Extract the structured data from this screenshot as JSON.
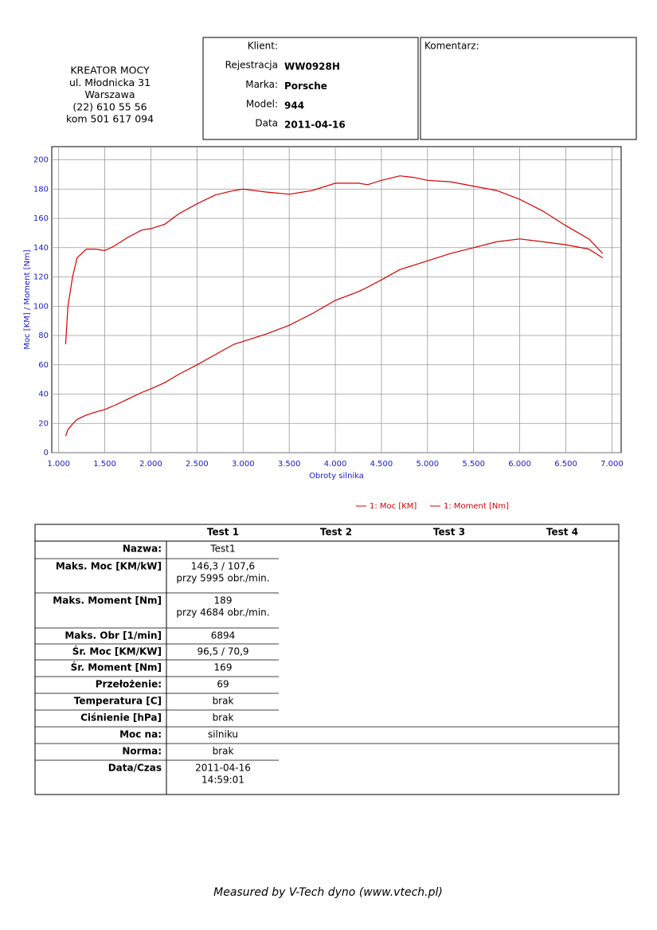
{
  "header": {
    "company": [
      "KREATOR MOCY",
      "ul. Młodnicka 31",
      "Warszawa",
      "(22) 610 55 56",
      "kom 501 617 094"
    ],
    "client": [
      {
        "label": "Klient:"
      },
      {
        "label": "Rejestracja",
        "value": "WW0928H"
      },
      {
        "label": "Marka:",
        "value": "Porsche"
      },
      {
        "label": "Model:",
        "value": "944"
      },
      {
        "label": "Data",
        "value": "2011-04-16"
      }
    ],
    "comment": "Komentarz:"
  },
  "chart_data": {
    "type": "line",
    "xlabel": "Obroty silnika",
    "ylabel": "Moc [KM] / Moment [Nm]",
    "x": [
      1075,
      1100,
      1150,
      1200,
      1300,
      1400,
      1500,
      1600,
      1750,
      1900,
      2000,
      2150,
      2300,
      2500,
      2700,
      2900,
      3000,
      3250,
      3500,
      3750,
      4000,
      4250,
      4350,
      4500,
      4700,
      4850,
      5000,
      5250,
      5500,
      5750,
      6000,
      6250,
      6500,
      6750,
      6900
    ],
    "series": [
      {
        "name": "1: Moc [KM]",
        "color": "#d40000",
        "values": [
          11.3,
          15.7,
          19.6,
          22.7,
          25.7,
          27.7,
          29.5,
          32.1,
          36.6,
          41.1,
          43.6,
          47.8,
          53.4,
          60,
          67,
          74,
          76,
          81,
          87,
          95,
          104,
          110,
          113,
          118,
          125,
          128,
          131,
          136,
          140,
          144,
          146,
          144,
          142,
          139,
          133
        ]
      },
      {
        "name": "1: Moment [Nm]",
        "color": "#d40000",
        "values": [
          74,
          100,
          120,
          133,
          139,
          139,
          138,
          141,
          147,
          152,
          153,
          156,
          163,
          170,
          176,
          179,
          180,
          178,
          176.5,
          179,
          184,
          184,
          183,
          186,
          189,
          188,
          186,
          185,
          182,
          179,
          173,
          165,
          155,
          146,
          136
        ]
      }
    ],
    "xlim": [
      925,
      7100
    ],
    "ylim": [
      0,
      209
    ],
    "xticks": [
      {
        "value": 1000,
        "label": "1.000"
      },
      {
        "value": 1500,
        "label": "1.500"
      },
      {
        "value": 2000,
        "label": "2.000"
      },
      {
        "value": 2500,
        "label": "2.500"
      },
      {
        "value": 3000,
        "label": "3.000"
      },
      {
        "value": 3500,
        "label": "3.500"
      },
      {
        "value": 4000,
        "label": "4.000"
      },
      {
        "value": 4500,
        "label": "4.500"
      },
      {
        "value": 5000,
        "label": "5.000"
      },
      {
        "value": 5500,
        "label": "5.500"
      },
      {
        "value": 6000,
        "label": "6.000"
      },
      {
        "value": 6500,
        "label": "6.500"
      },
      {
        "value": 7000,
        "label": "7.000"
      }
    ],
    "yticks": [
      0,
      20,
      40,
      60,
      80,
      100,
      120,
      140,
      160,
      180,
      200
    ],
    "grid": true
  },
  "table": {
    "columns": [
      "Test 1",
      "Test 2",
      "Test 3",
      "Test 4"
    ],
    "rows": [
      [
        "Nazwa:",
        "Test1"
      ],
      [
        "Maks. Moc [KM/kW]",
        "146,3 / 107,6",
        "przy 5995 obr./min."
      ],
      [
        "Maks. Moment [Nm]",
        "189",
        "przy 4684 obr./min."
      ],
      [
        "Maks. Obr [1/min]",
        "6894"
      ],
      [
        "Śr. Moc [KM/KW]",
        "96,5 / 70,9"
      ],
      [
        "Śr. Moment [Nm]",
        "169"
      ],
      [
        "Przełożenie:",
        "69"
      ],
      [
        "Temperatura [C]",
        "brak"
      ],
      [
        "Ciśnienie [hPa]",
        "brak"
      ],
      [
        "Moc na:",
        "silniku"
      ],
      [
        "Norma:",
        "brak"
      ],
      [
        "Data/Czas",
        "2011-04-16",
        "14:59:01"
      ]
    ]
  },
  "footer": "Measured by V-Tech dyno (www.vtech.pl)"
}
